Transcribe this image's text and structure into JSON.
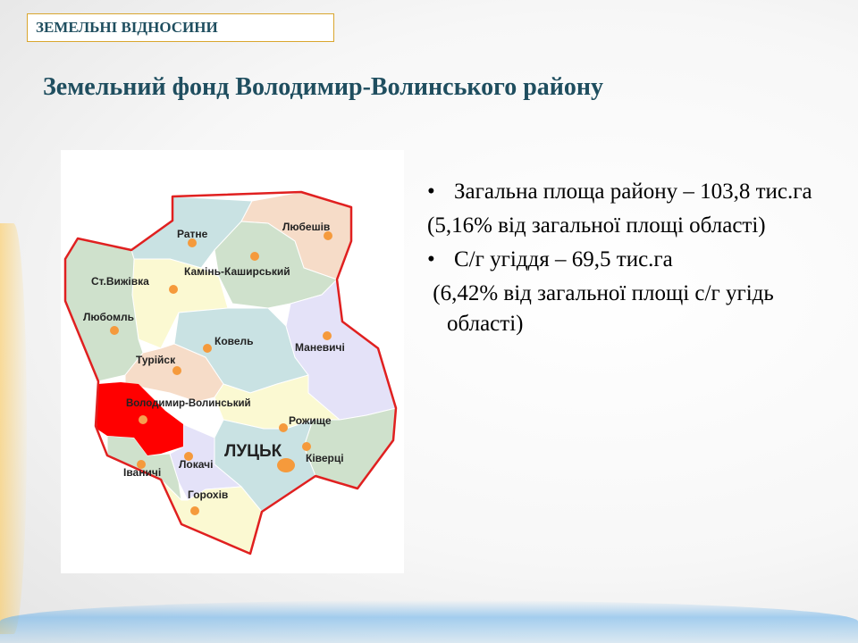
{
  "section_tag": "ЗЕМЕЛЬНІ ВІДНОСИНИ",
  "title": "Земельний фонд Володимир-Волинського району",
  "map": {
    "highlight_color": "#ff0000",
    "border_color": "#e02020",
    "labels": {
      "ratne": "Ратне",
      "liubeshiv": "Любешів",
      "kamin": "Камінь-Каширський",
      "vyzhivka": "Ст.Вижівка",
      "liuboml": "Любомль",
      "kovel": "Ковель",
      "manevychi": "Маневичі",
      "turiisk": "Турійск",
      "volodymyr": "Володимир-Волинський",
      "rozhyshche": "Рожище",
      "lutsk": "ЛУЦЬК",
      "kivertsi": "Ківерці",
      "ivanychi": "Іваничі",
      "lokachi": "Локачі",
      "horokhiv": "Горохів"
    }
  },
  "content": {
    "bullet1": "Загальна площа району – 103,8 тис.га",
    "para1": "(5,16% від загальної площі області)",
    "bullet2": "С/г угіддя – 69,5 тис.га",
    "para2": " (6,42% від загальної площі с/г угідь області)",
    "bullet_symbol": "•"
  }
}
